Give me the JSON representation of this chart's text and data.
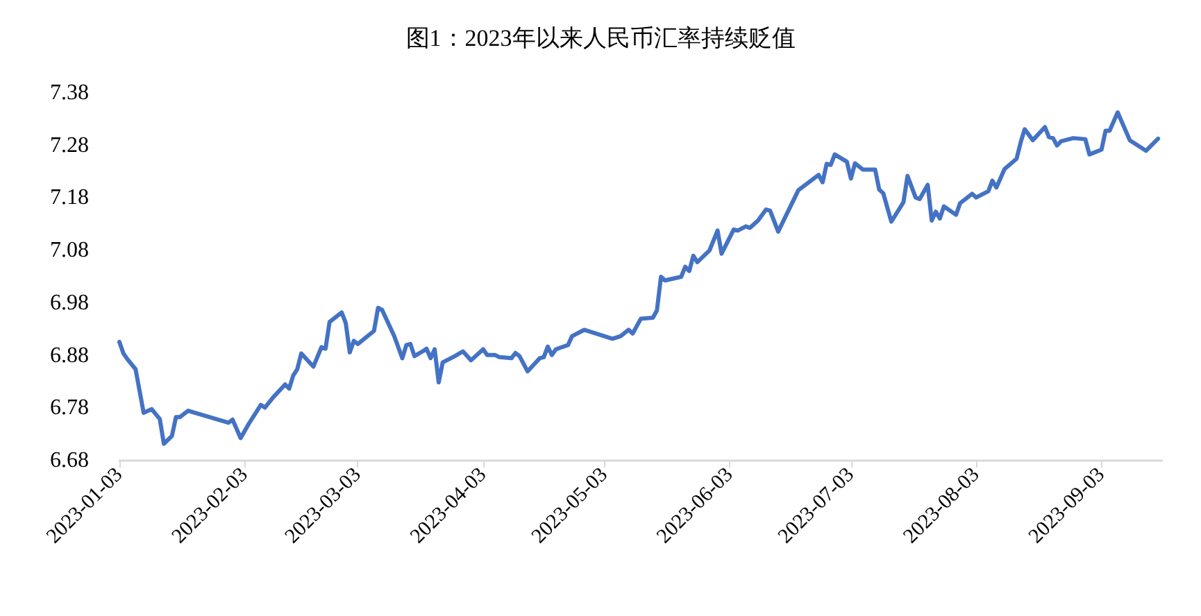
{
  "chart_data": {
    "type": "line",
    "title": "图1：2023年以来人民币汇率持续贬值",
    "x": [
      "2023-01-03",
      "2023-01-04",
      "2023-01-05",
      "2023-01-07",
      "2023-01-09",
      "2023-01-11",
      "2023-01-13",
      "2023-01-14",
      "2023-01-16",
      "2023-01-17",
      "2023-01-18",
      "2023-01-20",
      "2023-01-30",
      "2023-01-31",
      "2023-02-02",
      "2023-02-04",
      "2023-02-07",
      "2023-02-08",
      "2023-02-10",
      "2023-02-13",
      "2023-02-14",
      "2023-02-15",
      "2023-02-16",
      "2023-02-17",
      "2023-02-20",
      "2023-02-22",
      "2023-02-23",
      "2023-02-24",
      "2023-02-27",
      "2023-02-28",
      "2023-03-01",
      "2023-03-02",
      "2023-03-03",
      "2023-03-07",
      "2023-03-08",
      "2023-03-09",
      "2023-03-12",
      "2023-03-14",
      "2023-03-15",
      "2023-03-16",
      "2023-03-17",
      "2023-03-19",
      "2023-03-20",
      "2023-03-21",
      "2023-03-22",
      "2023-03-23",
      "2023-03-24",
      "2023-03-27",
      "2023-03-29",
      "2023-03-31",
      "2023-04-03",
      "2023-04-04",
      "2023-04-06",
      "2023-04-07",
      "2023-04-10",
      "2023-04-11",
      "2023-04-12",
      "2023-04-14",
      "2023-04-17",
      "2023-04-18",
      "2023-04-19",
      "2023-04-20",
      "2023-04-21",
      "2023-04-24",
      "2023-04-25",
      "2023-04-28",
      "2023-05-05",
      "2023-05-07",
      "2023-05-09",
      "2023-05-10",
      "2023-05-12",
      "2023-05-15",
      "2023-05-16",
      "2023-05-17",
      "2023-05-18",
      "2023-05-22",
      "2023-05-23",
      "2023-05-24",
      "2023-05-25",
      "2023-05-26",
      "2023-05-29",
      "2023-05-31",
      "2023-06-01",
      "2023-06-04",
      "2023-06-05",
      "2023-06-07",
      "2023-06-08",
      "2023-06-10",
      "2023-06-12",
      "2023-06-13",
      "2023-06-15",
      "2023-06-20",
      "2023-06-25",
      "2023-06-26",
      "2023-06-27",
      "2023-06-28",
      "2023-06-29",
      "2023-07-02",
      "2023-07-03",
      "2023-07-04",
      "2023-07-06",
      "2023-07-09",
      "2023-07-10",
      "2023-07-11",
      "2023-07-13",
      "2023-07-16",
      "2023-07-17",
      "2023-07-19",
      "2023-07-20",
      "2023-07-22",
      "2023-07-23",
      "2023-07-24",
      "2023-07-25",
      "2023-07-26",
      "2023-07-29",
      "2023-07-30",
      "2023-08-02",
      "2023-08-03",
      "2023-08-06",
      "2023-08-07",
      "2023-08-08",
      "2023-08-10",
      "2023-08-13",
      "2023-08-14",
      "2023-08-15",
      "2023-08-17",
      "2023-08-20",
      "2023-08-21",
      "2023-08-22",
      "2023-08-23",
      "2023-08-24",
      "2023-08-27",
      "2023-08-30",
      "2023-08-31",
      "2023-09-03",
      "2023-09-04",
      "2023-09-05",
      "2023-09-07",
      "2023-09-10",
      "2023-09-14",
      "2023-09-17"
    ],
    "series": [
      {
        "color": "#4472c4",
        "values": [
          6.906,
          6.884,
          6.873,
          6.854,
          6.771,
          6.778,
          6.759,
          6.712,
          6.727,
          6.763,
          6.763,
          6.775,
          6.752,
          6.758,
          6.723,
          6.75,
          6.786,
          6.781,
          6.8,
          6.825,
          6.817,
          6.842,
          6.854,
          6.884,
          6.859,
          6.896,
          6.893,
          6.944,
          6.962,
          6.942,
          6.886,
          6.908,
          6.902,
          6.927,
          6.971,
          6.967,
          6.917,
          6.875,
          6.9,
          6.902,
          6.879,
          6.888,
          6.893,
          6.875,
          6.892,
          6.829,
          6.867,
          6.879,
          6.888,
          6.871,
          6.892,
          6.881,
          6.881,
          6.877,
          6.875,
          6.885,
          6.879,
          6.85,
          6.875,
          6.877,
          6.897,
          6.881,
          6.892,
          6.9,
          6.917,
          6.929,
          6.912,
          6.917,
          6.929,
          6.922,
          6.95,
          6.952,
          6.966,
          7.03,
          7.023,
          7.03,
          7.049,
          7.041,
          7.07,
          7.058,
          7.08,
          7.118,
          7.074,
          7.12,
          7.118,
          7.126,
          7.123,
          7.137,
          7.158,
          7.156,
          7.116,
          7.195,
          7.224,
          7.21,
          7.245,
          7.243,
          7.263,
          7.249,
          7.217,
          7.246,
          7.234,
          7.234,
          7.196,
          7.189,
          7.135,
          7.172,
          7.222,
          7.181,
          7.178,
          7.205,
          7.137,
          7.154,
          7.141,
          7.164,
          7.148,
          7.17,
          7.188,
          7.181,
          7.193,
          7.213,
          7.2,
          7.235,
          7.255,
          7.286,
          7.311,
          7.29,
          7.315,
          7.296,
          7.294,
          7.28,
          7.288,
          7.294,
          7.292,
          7.263,
          7.272,
          7.308,
          7.308,
          7.343,
          7.29,
          7.27,
          7.293
        ]
      }
    ],
    "xlim": [
      "2023-01-03",
      "2023-09-18"
    ],
    "xticks": [
      "2023-01-03",
      "2023-02-03",
      "2023-03-03",
      "2023-04-03",
      "2023-05-03",
      "2023-06-03",
      "2023-07-03",
      "2023-08-03",
      "2023-09-03"
    ],
    "ylim": [
      6.68,
      7.38
    ],
    "yticks": [
      6.68,
      6.78,
      6.88,
      6.98,
      7.08,
      7.18,
      7.28,
      7.38
    ],
    "grid": false,
    "marker": "none",
    "line_style": "solid"
  }
}
